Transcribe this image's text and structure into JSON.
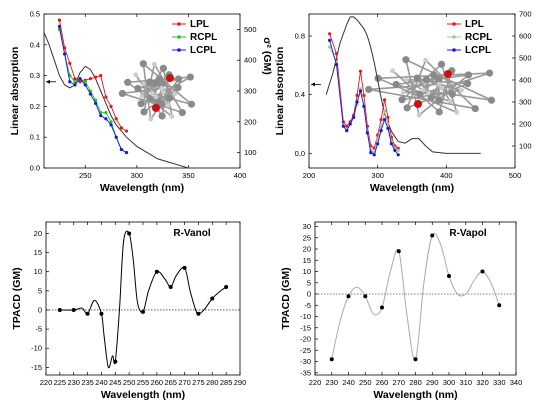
{
  "chart_data": [
    {
      "id": "top-left",
      "type": "line",
      "xlabel": "Wavelength (nm)",
      "ylabel": "Linear absorption",
      "ylabel_right": "σ² (GM)",
      "xlim": [
        210,
        400
      ],
      "ylim": [
        0,
        0.5
      ],
      "ylim_right": [
        50,
        550
      ],
      "xticks": [
        250,
        300,
        350,
        400
      ],
      "yticks": [
        0.0,
        0.1,
        0.2,
        0.3,
        0.4,
        0.5
      ],
      "yticks_right": [
        100,
        200,
        300,
        400,
        500
      ],
      "legend": [
        "LPL",
        "RCPL",
        "LCPL"
      ],
      "legend_position": "top-right",
      "absorption": {
        "x": [
          210,
          215,
          220,
          225,
          230,
          235,
          240,
          245,
          250,
          255,
          260,
          265,
          270,
          275,
          280,
          290,
          300,
          310,
          320,
          330,
          340,
          350,
          360
        ],
        "y": [
          0.44,
          0.4,
          0.35,
          0.3,
          0.27,
          0.26,
          0.27,
          0.31,
          0.33,
          0.32,
          0.29,
          0.25,
          0.21,
          0.17,
          0.14,
          0.1,
          0.07,
          0.05,
          0.03,
          0.02,
          0.01,
          0.0,
          0.0
        ]
      },
      "series": [
        {
          "name": "LPL",
          "color": "#e8151b",
          "x": [
            225,
            230,
            235,
            240,
            245,
            250,
            255,
            260,
            265,
            270,
            275,
            280,
            285,
            290
          ],
          "y": [
            530,
            440,
            390,
            340,
            330,
            335,
            340,
            345,
            350,
            280,
            250,
            210,
            180,
            170
          ]
        },
        {
          "name": "RCPL",
          "color": "#22c322",
          "x": [
            225,
            230,
            235,
            240,
            245,
            250,
            255,
            260,
            265,
            270,
            275,
            280,
            285,
            290
          ],
          "y": [
            500,
            420,
            350,
            330,
            340,
            330,
            300,
            270,
            230,
            230,
            200,
            150,
            110,
            100
          ]
        },
        {
          "name": "LCPL",
          "color": "#1717e0",
          "x": [
            225,
            230,
            235,
            240,
            245,
            250,
            255,
            260,
            265,
            270,
            275,
            280,
            285,
            290
          ],
          "y": [
            510,
            420,
            330,
            320,
            340,
            320,
            290,
            260,
            220,
            210,
            190,
            150,
            110,
            100
          ]
        }
      ]
    },
    {
      "id": "top-right",
      "type": "line",
      "xlabel": "Wavelength (nm)",
      "ylabel": "Linear absorption",
      "xlim": [
        200,
        500
      ],
      "ylim": [
        -0.1,
        0.95
      ],
      "ylim_right": [
        0,
        700
      ],
      "xticks": [
        200,
        300,
        400,
        500
      ],
      "yticks": [
        0.0,
        0.4,
        0.8
      ],
      "yticks_right": [
        100,
        200,
        300,
        400,
        500,
        600,
        700
      ],
      "legend": [
        "LPL",
        "RCPL",
        "LCPL"
      ],
      "legend_position": "top-right",
      "absorption": {
        "x": [
          225,
          235,
          245,
          255,
          260,
          265,
          270,
          275,
          280,
          285,
          290,
          295,
          300,
          305,
          310,
          320,
          330,
          340,
          350,
          360,
          370,
          380,
          400,
          450
        ],
        "y": [
          0.4,
          0.55,
          0.75,
          0.88,
          0.93,
          0.93,
          0.91,
          0.88,
          0.85,
          0.8,
          0.72,
          0.62,
          0.5,
          0.38,
          0.27,
          0.15,
          0.08,
          0.07,
          0.1,
          0.1,
          0.05,
          0.01,
          0.0,
          0.0
        ]
      },
      "series": [
        {
          "name": "LPL",
          "color": "#e8151b",
          "x": [
            230,
            240,
            250,
            255,
            260,
            265,
            270,
            275,
            280,
            285,
            290,
            295,
            300,
            305,
            310,
            315,
            320,
            325,
            330
          ],
          "y": [
            610,
            520,
            210,
            190,
            210,
            240,
            330,
            440,
            330,
            190,
            100,
            90,
            150,
            220,
            310,
            230,
            140,
            100,
            90
          ]
        },
        {
          "name": "RCPL",
          "color": "#9ec99e",
          "x": [
            230,
            240,
            250,
            255,
            260,
            265,
            270,
            275,
            280,
            285,
            290,
            295,
            300,
            305,
            310,
            315,
            320,
            325,
            330
          ],
          "y": [
            550,
            480,
            190,
            170,
            200,
            230,
            290,
            360,
            280,
            170,
            80,
            70,
            130,
            190,
            260,
            200,
            120,
            90,
            80
          ]
        },
        {
          "name": "LCPL",
          "color": "#1717e0",
          "x": [
            230,
            240,
            250,
            255,
            260,
            265,
            270,
            275,
            280,
            285,
            290,
            295,
            300,
            305,
            310,
            315,
            320,
            325,
            330
          ],
          "y": [
            580,
            470,
            190,
            170,
            200,
            230,
            300,
            350,
            280,
            160,
            70,
            60,
            110,
            170,
            220,
            180,
            110,
            80,
            60
          ]
        }
      ]
    },
    {
      "id": "bottom-left",
      "type": "line",
      "title": "R-Vanol",
      "xlabel": "Wavelength (nm)",
      "ylabel": "TPACD (GM)",
      "xlim": [
        220,
        290
      ],
      "ylim": [
        -17,
        23
      ],
      "xticks": [
        220,
        225,
        230,
        235,
        240,
        245,
        250,
        255,
        260,
        265,
        270,
        275,
        280,
        285,
        290
      ],
      "yticks": [
        -15,
        -10,
        -5,
        0,
        5,
        10,
        15,
        20
      ],
      "points": {
        "x": [
          225,
          230,
          235,
          240,
          245,
          250,
          255,
          260,
          265,
          270,
          275,
          280,
          285
        ],
        "y": [
          0,
          0,
          -1,
          -1,
          -13.5,
          20,
          -0.5,
          10,
          6,
          11,
          -1,
          3,
          6
        ]
      },
      "curve": {
        "x": [
          225,
          230,
          233,
          235,
          237.5,
          240,
          241,
          242.5,
          244,
          245,
          246.5,
          248,
          250,
          251.5,
          253,
          255,
          257,
          260,
          263,
          265,
          267,
          270,
          272,
          274,
          275,
          277,
          280,
          283,
          285
        ],
        "y": [
          0,
          0,
          0.5,
          -1,
          2.5,
          -1,
          -7,
          -15,
          -12,
          -13.5,
          0,
          18,
          20,
          13,
          2,
          -0.5,
          5,
          10,
          8,
          6,
          9,
          11,
          5,
          0,
          -1,
          0,
          3,
          5,
          6
        ]
      }
    },
    {
      "id": "bottom-right",
      "type": "line",
      "title": "R-Vapol",
      "xlabel": "Wavelength (nm)",
      "ylabel": "TPACD (GM)",
      "xlim": [
        220,
        340
      ],
      "ylim": [
        -36,
        32
      ],
      "xticks": [
        220,
        230,
        240,
        250,
        260,
        270,
        280,
        290,
        300,
        310,
        320,
        330,
        340
      ],
      "yticks": [
        -35,
        -30,
        -25,
        -20,
        -15,
        -10,
        -5,
        0,
        5,
        10,
        15,
        20,
        25,
        30
      ],
      "points": {
        "x": [
          230,
          240,
          250,
          260,
          270,
          280,
          290,
          300,
          320,
          330
        ],
        "y": [
          -29,
          -1,
          -1,
          -6,
          19,
          -29,
          26,
          8,
          10,
          -5
        ]
      },
      "curve": {
        "x": [
          230,
          235,
          240,
          245,
          250,
          255,
          260,
          265,
          270,
          275,
          280,
          285,
          290,
          295,
          300,
          305,
          310,
          315,
          320,
          325,
          330
        ],
        "y": [
          -29,
          -12,
          -1,
          3,
          -1,
          -9,
          -6,
          10,
          19,
          -10,
          -29,
          5,
          26,
          22,
          8,
          0,
          0,
          6,
          10,
          5,
          -5
        ]
      }
    }
  ]
}
